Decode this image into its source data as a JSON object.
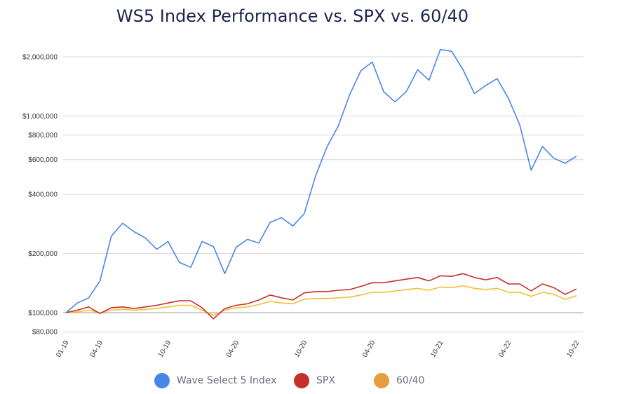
{
  "chart_data": {
    "type": "line",
    "title": "WS5 Index Performance vs. SPX vs. 60/40",
    "y_scale": "log",
    "ylim": [
      76000,
      2300000
    ],
    "y_ticks": [
      {
        "value": 80000,
        "label": "$80,000"
      },
      {
        "value": 100000,
        "label": "$100,000"
      },
      {
        "value": 200000,
        "label": "$200,000"
      },
      {
        "value": 400000,
        "label": "$400,000"
      },
      {
        "value": 600000,
        "label": "$600,000"
      },
      {
        "value": 800000,
        "label": "$800,000"
      },
      {
        "value": 1000000,
        "label": "$1,000,000"
      },
      {
        "value": 2000000,
        "label": "$2,000,000"
      }
    ],
    "x_tick_labels": [
      {
        "index": 0,
        "label": "01-19"
      },
      {
        "index": 3,
        "label": "04-19"
      },
      {
        "index": 9,
        "label": "10-19"
      },
      {
        "index": 15,
        "label": "04-20"
      },
      {
        "index": 21,
        "label": "10-20"
      },
      {
        "index": 27,
        "label": "04-20"
      },
      {
        "index": 33,
        "label": "10-21"
      },
      {
        "index": 39,
        "label": "04-22"
      },
      {
        "index": 45,
        "label": "10-22"
      }
    ],
    "num_points": 46,
    "series": [
      {
        "name": "Wave Select 5 Index",
        "color": "#4a86e8",
        "values": [
          100000,
          112000,
          119000,
          145000,
          245000,
          285000,
          258000,
          240000,
          210000,
          230000,
          180000,
          170000,
          230000,
          217000,
          158000,
          215000,
          236000,
          226000,
          288000,
          304000,
          276000,
          318000,
          495000,
          695000,
          890000,
          1280000,
          1700000,
          1880000,
          1330000,
          1180000,
          1330000,
          1720000,
          1520000,
          2180000,
          2130000,
          1720000,
          1300000,
          1430000,
          1550000,
          1230000,
          900000,
          530000,
          700000,
          610000,
          575000,
          625000
        ]
      },
      {
        "name": "SPX",
        "color": "#c5302a",
        "values": [
          100000,
          103000,
          107000,
          99000,
          106000,
          107000,
          105000,
          107000,
          109000,
          112000,
          115000,
          115000,
          106000,
          93000,
          105000,
          109000,
          111000,
          116000,
          123000,
          119000,
          116000,
          126000,
          128000,
          128000,
          130000,
          131000,
          136000,
          142000,
          142000,
          145000,
          148000,
          151000,
          145000,
          154000,
          153000,
          158000,
          151000,
          147000,
          151000,
          140000,
          140000,
          129000,
          140000,
          134000,
          124000,
          132000
        ]
      },
      {
        "name": "60/40",
        "color": "#f1c232",
        "values": [
          100000,
          101000,
          103000,
          100000,
          103000,
          104000,
          103000,
          104000,
          105000,
          107000,
          109000,
          109000,
          103000,
          97000,
          103000,
          106000,
          107000,
          110000,
          114000,
          112000,
          111000,
          117000,
          118000,
          118000,
          119000,
          120000,
          123000,
          127000,
          127000,
          129000,
          131000,
          133000,
          130000,
          135000,
          134000,
          137000,
          133000,
          131000,
          133000,
          127000,
          127000,
          121000,
          127000,
          124000,
          117000,
          122000
        ]
      }
    ],
    "legend_position": "bottom",
    "legend_colors": [
      "#4a86e8",
      "#c5302a",
      "#e69c3f"
    ],
    "gridlines": true
  }
}
